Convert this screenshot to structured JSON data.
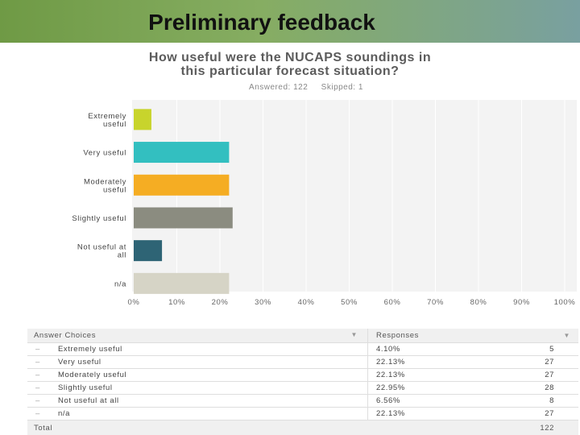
{
  "slide": {
    "title": "Preliminary feedback"
  },
  "survey": {
    "question": "How useful were the NUCAPS soundings in this particular forecast situation?",
    "question_line1": "How useful were the NUCAPS soundings in",
    "question_line2": "this particular forecast situation?",
    "answered_label": "Answered: 122",
    "skipped_label": "Skipped: 1"
  },
  "chart_data": {
    "type": "bar",
    "orientation": "horizontal",
    "categories": [
      "Extremely useful",
      "Very useful",
      "Moderately useful",
      "Slightly useful",
      "Not useful at all",
      "n/a"
    ],
    "category_label_lines": [
      [
        "Extremely",
        "useful"
      ],
      [
        "Very useful"
      ],
      [
        "Moderately",
        "useful"
      ],
      [
        "Slightly useful"
      ],
      [
        "Not useful at",
        "all"
      ],
      [
        "n/a"
      ]
    ],
    "values": [
      4.1,
      22.13,
      22.13,
      22.95,
      6.56,
      22.13
    ],
    "colors": [
      "#c8d42c",
      "#33bfc0",
      "#f5ad23",
      "#8b8c80",
      "#2e6475",
      "#d6d4c6"
    ],
    "xlim": [
      0,
      100
    ],
    "xticks": [
      "0%",
      "10%",
      "20%",
      "30%",
      "40%",
      "50%",
      "60%",
      "70%",
      "80%",
      "90%",
      "100%"
    ],
    "grid": true,
    "background": "#f3f3f3"
  },
  "table": {
    "header_choice": "Answer Choices",
    "header_responses": "Responses",
    "rows": [
      {
        "choice": "Extremely useful",
        "percent": "4.10%",
        "count": "5"
      },
      {
        "choice": "Very useful",
        "percent": "22.13%",
        "count": "27"
      },
      {
        "choice": "Moderately useful",
        "percent": "22.13%",
        "count": "27"
      },
      {
        "choice": "Slightly useful",
        "percent": "22.95%",
        "count": "28"
      },
      {
        "choice": "Not useful at all",
        "percent": "6.56%",
        "count": "8"
      },
      {
        "choice": "n/a",
        "percent": "22.13%",
        "count": "27"
      }
    ],
    "total_label": "Total",
    "total_value": "122"
  }
}
